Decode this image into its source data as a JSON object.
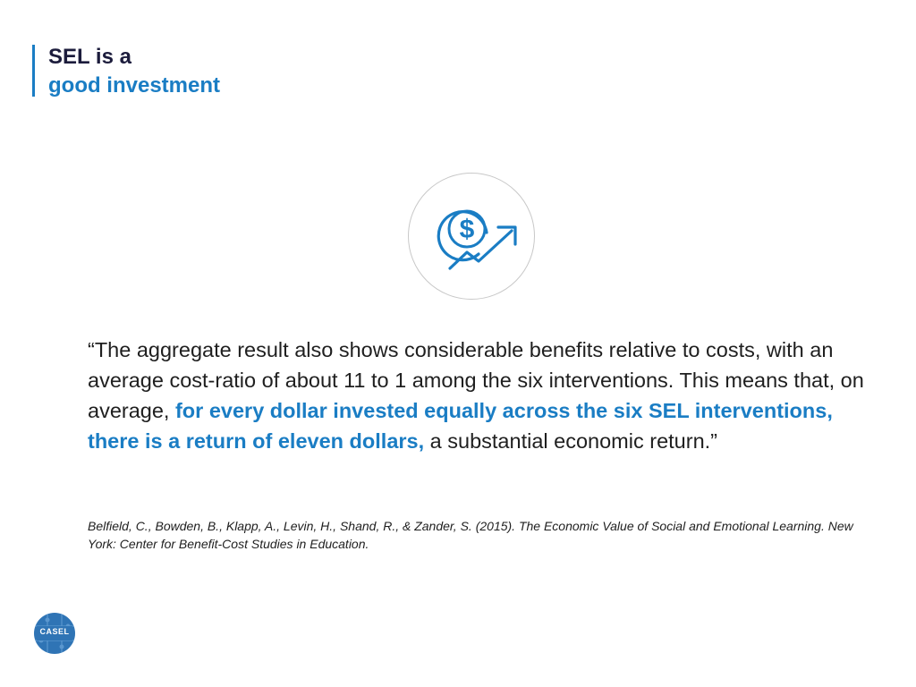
{
  "slide": {
    "title_line1": "SEL is a",
    "title_line2": "good investment",
    "quote": {
      "part1": "“The aggregate result also shows considerable benefits relative to costs, with an average cost-ratio of about 11 to 1 among the six interventions. This means that, on average, ",
      "highlight": "for every dollar invested equally across the six SEL interventions, there is a return of eleven dollars,",
      "part2": " a substantial economic return.”"
    },
    "citation": "Belfield, C., Bowden, B., Klapp, A., Levin, H., Shand, R., & Zander, S. (2015). The Economic Value of Social and Emotional Learning. New York: Center for Benefit-Cost Studies in Education.",
    "logo_text": "CASEL",
    "icon": "dollar-growth-icon",
    "icon_glyph": "$"
  },
  "colors": {
    "accent": "#1a7dc4",
    "title_dark": "#1c1c3c",
    "logo_blue": "#2f74b5",
    "circle_border": "#c8c8c8"
  }
}
